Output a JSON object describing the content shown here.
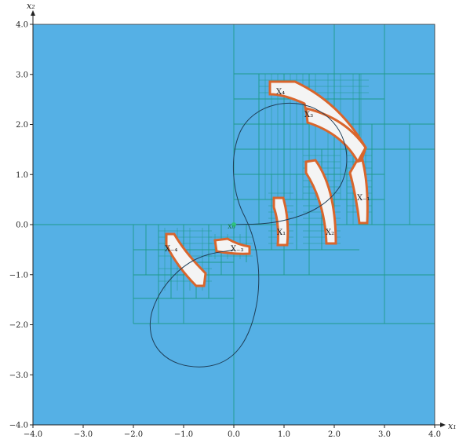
{
  "figure": {
    "background_color": "#55b0e5",
    "grid_color": "#1f9a8a",
    "obstacle_fill": "#f4f4f4",
    "obstacle_border": "#d9652c",
    "trajectory_color": "#1f3e57",
    "start_marker_color": "#2ec27e"
  },
  "axes": {
    "xlabel": "x₁",
    "ylabel": "x₂",
    "xlim": [
      -4,
      4
    ],
    "ylim": [
      -4,
      4
    ],
    "xticks": [
      "−4.0",
      "−3.0",
      "−2.0",
      "−1.0",
      "0.0",
      "1.0",
      "2.0",
      "3.0",
      "4.0"
    ],
    "yticks": [
      "−4.0",
      "−3.0",
      "−2.0",
      "−1.0",
      "0.0",
      "1.0",
      "2.0",
      "3.0",
      "4.0"
    ]
  },
  "labels": {
    "start": "x₀",
    "x1": "X₁",
    "x2": "X₂",
    "x3": "X₃",
    "x4": "X₄",
    "x_neg1": "X₋₁",
    "x_neg2": "X₋₂",
    "x_neg3": "X₋₃",
    "x_neg4": "X₋₄"
  }
}
